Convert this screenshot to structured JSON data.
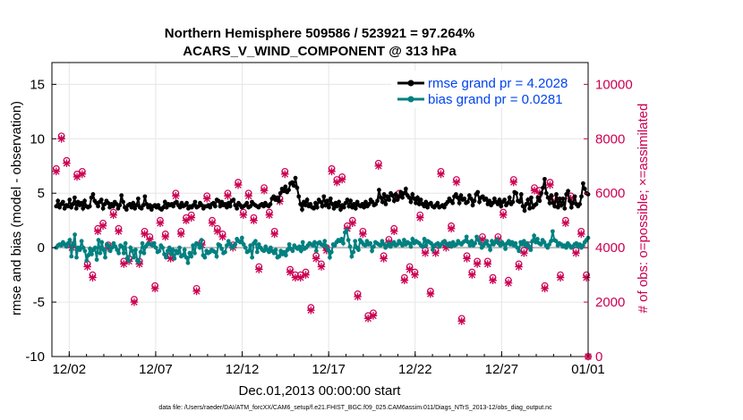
{
  "chart_data": {
    "type": "line",
    "title": "Northern Hemisphere 509586 / 523921 = 97.264%",
    "subtitle": "ACARS_V_WIND_COMPONENT @ 313 hPa",
    "ylabel_left": "rmse and bias (model - observation)",
    "ylabel_right": "# of obs: o=possible; ×=assimilated",
    "xlabel": "Dec.01,2013 00:00:00 start",
    "footer": "data file: /Users/raeder/DAI/ATM_forcXX/CAM6_setup/f.e21.FHIST_BGC.f09_025.CAM6assim.011/Diags_NTrS_2013-12/obs_diag_output.nc",
    "ylim_left": [
      -10,
      17
    ],
    "ylim_right": [
      0,
      10800
    ],
    "xlim": [
      0,
      31
    ],
    "left_ticks": [
      "-10",
      "-5",
      "0",
      "5",
      "10",
      "15"
    ],
    "right_ticks": [
      "0",
      "2000",
      "4000",
      "6000",
      "8000",
      "10000"
    ],
    "x_ticks": [
      {
        "x": 1,
        "label": "12/02"
      },
      {
        "x": 6,
        "label": "12/07"
      },
      {
        "x": 11,
        "label": "12/12"
      },
      {
        "x": 16,
        "label": "12/17"
      },
      {
        "x": 21,
        "label": "12/22"
      },
      {
        "x": 26,
        "label": "12/27"
      },
      {
        "x": 31,
        "label": "01/01"
      }
    ],
    "legend": [
      {
        "name": "rmse grand pr = 4.2028",
        "color": "#000000"
      },
      {
        "name": "bias grand pr = 0.0281",
        "color": "#008080"
      }
    ],
    "rmse": [
      3.8,
      4.3,
      3.7,
      4.0,
      4.2,
      3.6,
      3.9,
      3.8,
      4.4,
      3.7,
      4.0,
      4.6,
      3.6,
      4.2,
      3.9,
      4.1,
      3.6,
      4.3,
      3.8,
      3.7,
      3.8,
      4.6,
      4.9,
      4.3,
      4.1,
      3.8,
      4.2,
      4.4,
      3.6,
      4.0,
      4.3,
      4.1,
      3.7,
      4.0,
      3.8,
      4.2,
      4.0,
      3.6,
      3.9,
      4.8,
      4.2,
      3.7,
      3.5,
      3.9,
      4.0,
      3.7,
      4.1,
      3.6,
      3.9,
      4.5,
      3.7,
      3.6,
      3.9,
      4.7,
      4.0,
      3.7,
      3.9,
      3.5,
      3.8,
      3.9,
      3.7,
      3.9,
      3.6,
      3.5,
      3.7,
      4.2,
      3.7,
      4.0,
      3.9,
      4.0,
      3.8,
      4.1,
      4.2,
      3.9,
      3.7,
      4.1,
      3.8,
      3.9,
      4.1,
      3.6,
      3.8,
      3.7,
      3.9,
      4.2,
      3.7,
      3.8,
      4.1,
      3.9,
      3.6,
      3.8,
      3.8,
      3.9,
      3.7,
      4.0,
      4.1,
      3.8,
      4.4,
      4.3,
      3.8,
      4.2,
      3.9,
      4.0,
      3.7,
      4.1,
      3.8,
      4.3,
      4.4,
      3.9,
      3.6,
      4.1,
      3.9,
      3.7,
      3.8,
      3.9,
      4.1,
      3.7,
      3.8,
      4.2,
      4.0,
      3.9,
      3.8,
      3.7,
      3.9,
      4.0,
      3.8,
      4.1,
      3.9,
      3.8,
      4.0,
      4.5,
      4.7,
      4.4,
      4.6,
      4.3,
      5.0,
      5.4,
      5.2,
      5.6,
      5.1,
      5.3,
      5.9,
      6.0,
      5.7,
      6.4,
      5.5,
      4.7,
      4.0,
      3.5,
      4.2,
      3.9,
      4.4,
      3.8,
      4.0,
      3.7,
      3.6,
      4.1,
      3.7,
      4.4,
      4.2,
      3.8,
      4.7,
      3.9,
      4.3,
      3.7,
      4.5,
      4.0,
      3.6,
      4.1,
      3.8,
      4.2,
      3.5,
      3.9,
      3.7,
      4.1,
      4.4,
      3.8,
      4.3,
      3.7,
      4.0,
      3.6,
      4.2,
      3.9,
      3.8,
      4.0,
      3.7,
      4.2,
      3.8,
      4.0,
      4.4,
      4.2,
      3.9,
      4.0,
      4.3,
      5.3,
      4.6,
      4.2,
      4.9,
      4.0,
      4.7,
      4.4,
      5.0,
      4.8,
      4.3,
      4.9,
      4.4,
      4.7,
      5.1,
      4.6,
      5.0,
      5.4,
      4.8,
      4.6,
      4.2,
      4.9,
      4.5,
      4.1,
      4.6,
      4.0,
      4.4,
      4.0,
      3.8,
      4.2,
      3.7,
      4.0,
      4.1,
      3.8,
      3.7,
      3.9,
      4.1,
      3.7,
      3.8,
      3.9,
      3.7,
      4.0,
      4.2,
      4.5,
      4.3,
      4.1,
      4.7,
      4.9,
      4.6,
      4.1,
      4.8,
      4.4,
      4.5,
      4.1,
      4.2,
      4.8,
      4.5,
      3.9,
      4.3,
      4.9,
      5.1,
      4.2,
      4.6,
      4.7,
      4.4,
      4.5,
      4.0,
      4.3,
      3.9,
      4.1,
      4.5,
      4.2,
      4.0,
      4.4,
      3.8,
      4.2,
      4.4,
      3.9,
      4.1,
      4.6,
      4.0,
      4.2,
      5.1,
      5.0,
      4.3,
      4.2,
      4.9,
      3.8,
      3.4,
      4.0,
      4.4,
      3.6,
      4.6,
      3.7,
      3.9,
      4.0,
      4.6,
      4.3,
      5.0,
      5.5,
      6.3,
      5.0,
      4.6,
      4.1,
      4.8,
      4.1,
      3.8,
      4.9,
      3.7,
      4.5,
      3.9,
      4.5,
      3.6,
      4.9,
      5.2,
      4.3,
      3.7,
      4.1,
      4.7,
      4.0,
      3.8,
      4.0,
      4.7,
      5.9,
      5.4,
      5.0,
      4.9
    ],
    "bias": [
      0.0,
      0.2,
      0.3,
      0.2,
      0.5,
      0.3,
      0.1,
      0.4,
      0.7,
      -0.8,
      0.3,
      1.2,
      -0.9,
      0.0,
      -0.2,
      0.6,
      0.0,
      -0.3,
      -1.2,
      -0.7,
      -0.1,
      -0.6,
      -0.2,
      0.0,
      -1.1,
      0.7,
      -0.5,
      0.5,
      -0.2,
      -0.9,
      0.3,
      0.2,
      -0.3,
      0.0,
      0.4,
      0.1,
      -0.2,
      -0.5,
      0.2,
      0.1,
      -0.5,
      0.4,
      -1.0,
      -1.2,
      0.0,
      -0.3,
      -0.9,
      -0.2,
      -1.2,
      -1.3,
      -0.4,
      0.4,
      -0.5,
      0.1,
      0.3,
      0.4,
      0.3,
      0.2,
      0.4,
      0.0,
      -0.4,
      -0.3,
      0.2,
      0.0,
      -0.6,
      -0.9,
      -0.3,
      0.0,
      -0.6,
      -0.2,
      -1.0,
      -0.3,
      -0.5,
      0.0,
      -0.8,
      -0.7,
      -0.2,
      -0.9,
      -1.4,
      -0.5,
      -0.8,
      0.2,
      -0.5,
      0.4,
      0.3,
      0.0,
      0.7,
      -0.7,
      -0.9,
      -0.3,
      -0.5,
      -0.4,
      -0.2,
      -0.3,
      -0.4,
      -0.8,
      0.3,
      0.2,
      -0.1,
      -0.5,
      -0.4,
      0.2,
      0.6,
      0.3,
      0.0,
      0.1,
      0.3,
      0.8,
      0.6,
      0.5,
      0.9,
      0.3,
      0.0,
      -0.4,
      -0.3,
      0.2,
      -0.9,
      0.4,
      0.6,
      -0.4,
      0.3,
      0.0,
      -0.2,
      -0.3,
      0.1,
      -0.2,
      -0.4,
      0.0,
      -0.3,
      -0.5,
      -0.2,
      -0.9,
      -0.8,
      -0.3,
      -0.6,
      -0.4,
      -0.7,
      -0.2,
      0.3,
      -0.1,
      -0.3,
      0.2,
      0.0,
      -0.1,
      0.1,
      -0.3,
      0.5,
      -0.1,
      0.0,
      0.2,
      0.4,
      0.3,
      0.2,
      0.5,
      -0.3,
      0.4,
      0.5,
      0.3,
      0.2,
      0.6,
      0.1,
      -0.2,
      -0.9,
      -0.4,
      0.3,
      0.2,
      0.5,
      0.7,
      0.6,
      0.8,
      0.4,
      1.4,
      1.6,
      0.7,
      0.1,
      -0.8,
      -0.4,
      0.6,
      0.0,
      -0.2,
      0.7,
      0.5,
      0.3,
      0.2,
      0.6,
      0.3,
      0.4,
      -0.3,
      0.1,
      0.5,
      0.4,
      0.3,
      0.2,
      0.6,
      0.3,
      0.0,
      0.2,
      0.4,
      0.1,
      0.3,
      0.5,
      0.2,
      0.3,
      0.6,
      0.4,
      0.2,
      0.7,
      0.3,
      0.5,
      0.4,
      0.1,
      0.8,
      0.4,
      0.6,
      0.5,
      0.4,
      0.2,
      0.1,
      0.8,
      0.2,
      0.6,
      0.5,
      0.4,
      -0.2,
      0.2,
      0.3,
      0.4,
      0.1,
      0.3,
      0.5,
      0.6,
      0.3,
      0.2,
      0.4,
      0.1,
      0.5,
      0.2,
      0.3,
      0.6,
      0.4,
      0.3,
      0.5,
      0.6,
      1.0,
      0.5,
      0.2,
      0.6,
      0.2,
      0.4,
      1.0,
      0.7,
      0.4,
      0.0,
      0.2,
      0.4,
      0.6,
      0.2,
      -0.2,
      0.6,
      0.3,
      0.5,
      0.7,
      0.4,
      0.2,
      0.5,
      0.3,
      -0.1,
      0.4,
      0.6,
      0.3,
      0.5,
      0.2,
      0.4,
      0.0,
      -0.3,
      0.5,
      0.3,
      0.6,
      0.2,
      0.4,
      0.1,
      -0.2,
      0.6,
      1.1,
      0.5,
      0.8,
      0.4,
      0.3,
      0.7,
      0.5,
      0.2,
      0.0,
      0.3,
      0.6,
      1.5,
      0.7,
      0.6,
      0.2,
      0.4,
      0.3,
      0.1,
      0.2,
      0.0,
      0.4,
      0.2,
      0.0,
      0.1,
      0.3,
      0.4,
      0.1,
      0.3,
      0.0,
      0.2,
      0.5,
      0.7,
      0.9
    ],
    "obs_possible": [
      6900,
      3000,
      7800,
      8100,
      4600,
      2900,
      7200,
      7000,
      6200,
      4100,
      8100,
      5700,
      6700,
      2700,
      5900,
      6800,
      5100,
      3500,
      3400,
      4800,
      5100,
      3000,
      2100,
      1800,
      4700,
      3300,
      2800,
      4900,
      5900,
      5000,
      4100,
      5900,
      6100,
      5300,
      2300,
      2600,
      4700,
      5800,
      2600,
      3500,
      3800,
      5500,
      3600,
      4600,
      2700,
      2100,
      5600,
      5400,
      3500,
      6300,
      5800,
      4600,
      3800,
      6400,
      4400,
      6000,
      3200,
      2600,
      4000,
      2700,
      5000,
      4900,
      3000,
      4500,
      3200,
      4400,
      3700,
      3100,
      2700,
      6000,
      5000,
      3700,
      4600,
      7600,
      7500,
      5100,
      5300,
      4800,
      5200,
      4500,
      4100,
      2500,
      3600,
      6300,
      4200,
      3900,
      3000,
      5900,
      6400,
      4800,
      5000,
      3300,
      3500,
      4700,
      6100,
      6100,
      4500,
      3100,
      6200,
      6000,
      3200,
      5200,
      4100,
      3600,
      5100,
      6400,
      5600,
      2600,
      5300,
      3200,
      4000,
      6000,
      4200,
      2700,
      5100,
      6900,
      4900,
      3300,
      5800,
      4800,
      6200,
      6300,
      3200,
      5300,
      3100,
      2800,
      4600,
      5000,
      5400,
      5800,
      3500,
      5900,
      6800,
      6500,
      4500,
      3200,
      5800,
      4100,
      3000,
      2000,
      4700,
      3000,
      3700,
      5700,
      3100,
      3600,
      2600,
      1800,
      4500,
      5500,
      3700,
      2500,
      2000,
      3400,
      4200,
      5800,
      4000,
      6200,
      3500,
      6900,
      4600,
      2400,
      6500,
      2800,
      1600,
      6600,
      3800,
      2300,
      4800,
      3200,
      6800,
      5000,
      7300,
      4500,
      2300,
      3500,
      1900,
      4600,
      2100,
      2900,
      1500,
      6600,
      5900,
      1600,
      2300,
      5700,
      7100,
      4200,
      7100,
      3700,
      6100,
      5800,
      4300,
      2500,
      5400,
      4700,
      4600,
      3800,
      6000,
      4000,
      3500,
      2900,
      5400,
      4100,
      3300,
      4500,
      3600,
      3100,
      4700,
      2300,
      5200,
      2600,
      1700,
      3900,
      4300,
      4000,
      2400,
      3100,
      3800,
      3900,
      5400,
      3500,
      6800,
      5000,
      3500,
      4100,
      2600,
      6600,
      4800,
      3500,
      2400,
      6500,
      3900,
      2600,
      1400,
      4400,
      5400,
      3700,
      4700,
      3900,
      3100,
      2800,
      5000,
      3500,
      5200,
      6600,
      4400,
      6300,
      4000,
      3500,
      3500,
      1400,
      2900,
      4900,
      6600,
      4400,
      4900,
      3800,
      5300,
      5400,
      2200,
      2800,
      3000,
      4200,
      6500,
      4100,
      3500,
      3400,
      3300,
      5500,
      3900,
      3700,
      6100,
      4100,
      4500,
      3900,
      6200,
      3900,
      5000,
      6100,
      4700,
      2700,
      2600,
      5600,
      3300,
      6400,
      5700,
      4900,
      5800,
      4400,
      4100,
      3000,
      6300,
      4400,
      5000,
      5500,
      7100,
      5900,
      2700,
      6400,
      3900,
      4800,
      6800,
      4600,
      5000,
      5200,
      3000,
      0
    ],
    "obs_assimilated": [
      6800,
      2900,
      7700,
      8000,
      4500,
      2800,
      7100,
      6900,
      6100,
      4000,
      8000,
      5600,
      6600,
      2600,
      5800,
      6700,
      5000,
      3400,
      3300,
      4700,
      5000,
      2900,
      2000,
      1700,
      4600,
      3200,
      2700,
      4800,
      5800,
      4900,
      4000,
      5800,
      6000,
      5200,
      2200,
      2500,
      4600,
      5700,
      2500,
      3400,
      3700,
      5400,
      3500,
      4500,
      2600,
      2000,
      5500,
      5300,
      3400,
      6200,
      5700,
      4500,
      3700,
      6300,
      4300,
      5900,
      3100,
      2500,
      3900,
      2600,
      4900,
      4800,
      2900,
      4400,
      3100,
      4300,
      3600,
      3000,
      2600,
      5900,
      4900,
      3600,
      4500,
      7500,
      7400,
      5000,
      5200,
      4700,
      5100,
      4400,
      4000,
      2400,
      3500,
      6200,
      4100,
      3800,
      2900,
      5800,
      6300,
      4700,
      4900,
      3200,
      3400,
      4600,
      6000,
      6000,
      4400,
      3000,
      6100,
      5900,
      3100,
      5100,
      4000,
      3500,
      5000,
      6300,
      5500,
      2500,
      5200,
      3100,
      3900,
      5900,
      4100,
      2600,
      5000,
      6800,
      4800,
      3200,
      5700,
      4700,
      6100,
      6200,
      3100,
      5200,
      3000,
      2700,
      4500,
      4900,
      5300,
      5700,
      3400,
      5800,
      6700,
      6400,
      4400,
      3100,
      5700,
      4000,
      2900,
      1900,
      4600,
      2900,
      3600,
      5600,
      3000,
      3500,
      2500,
      1700,
      4400,
      5400,
      3600,
      2400,
      1900,
      3300,
      4100,
      5700,
      3900,
      6100,
      3400,
      6800,
      4500,
      2300,
      6400,
      2700,
      1500,
      6500,
      3700,
      2200,
      4700,
      3100,
      6700,
      4900,
      7200,
      4400,
      2200,
      3400,
      1800,
      4500,
      2000,
      2800,
      1400,
      6500,
      5800,
      1500,
      2200,
      5600,
      7000,
      4100,
      7000,
      3600,
      6000,
      5700,
      4200,
      2400,
      5300,
      4600,
      4500,
      3700,
      5900,
      3900,
      3400,
      2800,
      5300,
      4000,
      3200,
      4400,
      3500,
      3000,
      4600,
      2200,
      5100,
      2500,
      1600,
      3800,
      4200,
      3900,
      2300,
      3000,
      3700,
      3800,
      5300,
      3400,
      6700,
      4900,
      3400,
      4000,
      2500,
      6500,
      4700,
      3400,
      2300,
      6400,
      3800,
      2500,
      1300,
      4300,
      5300,
      3600,
      4600,
      3800,
      3000,
      2700,
      4900,
      3400,
      5100,
      6500,
      4300,
      6200,
      3900,
      3400,
      3400,
      1300,
      2800,
      4800,
      6500,
      4300,
      4800,
      3700,
      5200,
      5300,
      2100,
      2700,
      2900,
      4100,
      6400,
      4000,
      3400,
      3300,
      3200,
      5400,
      3800,
      3600,
      6000,
      4000,
      4400,
      3800,
      6100,
      3800,
      4900,
      6000,
      4600,
      2600,
      2500,
      5500,
      3200,
      6300,
      5600,
      4800,
      5700,
      4300,
      4000,
      2900,
      6200,
      4300,
      4900,
      5400,
      7000,
      5800,
      2600,
      6300,
      3800,
      4700,
      6700,
      4500,
      4900,
      5100,
      2900,
      0
    ]
  }
}
